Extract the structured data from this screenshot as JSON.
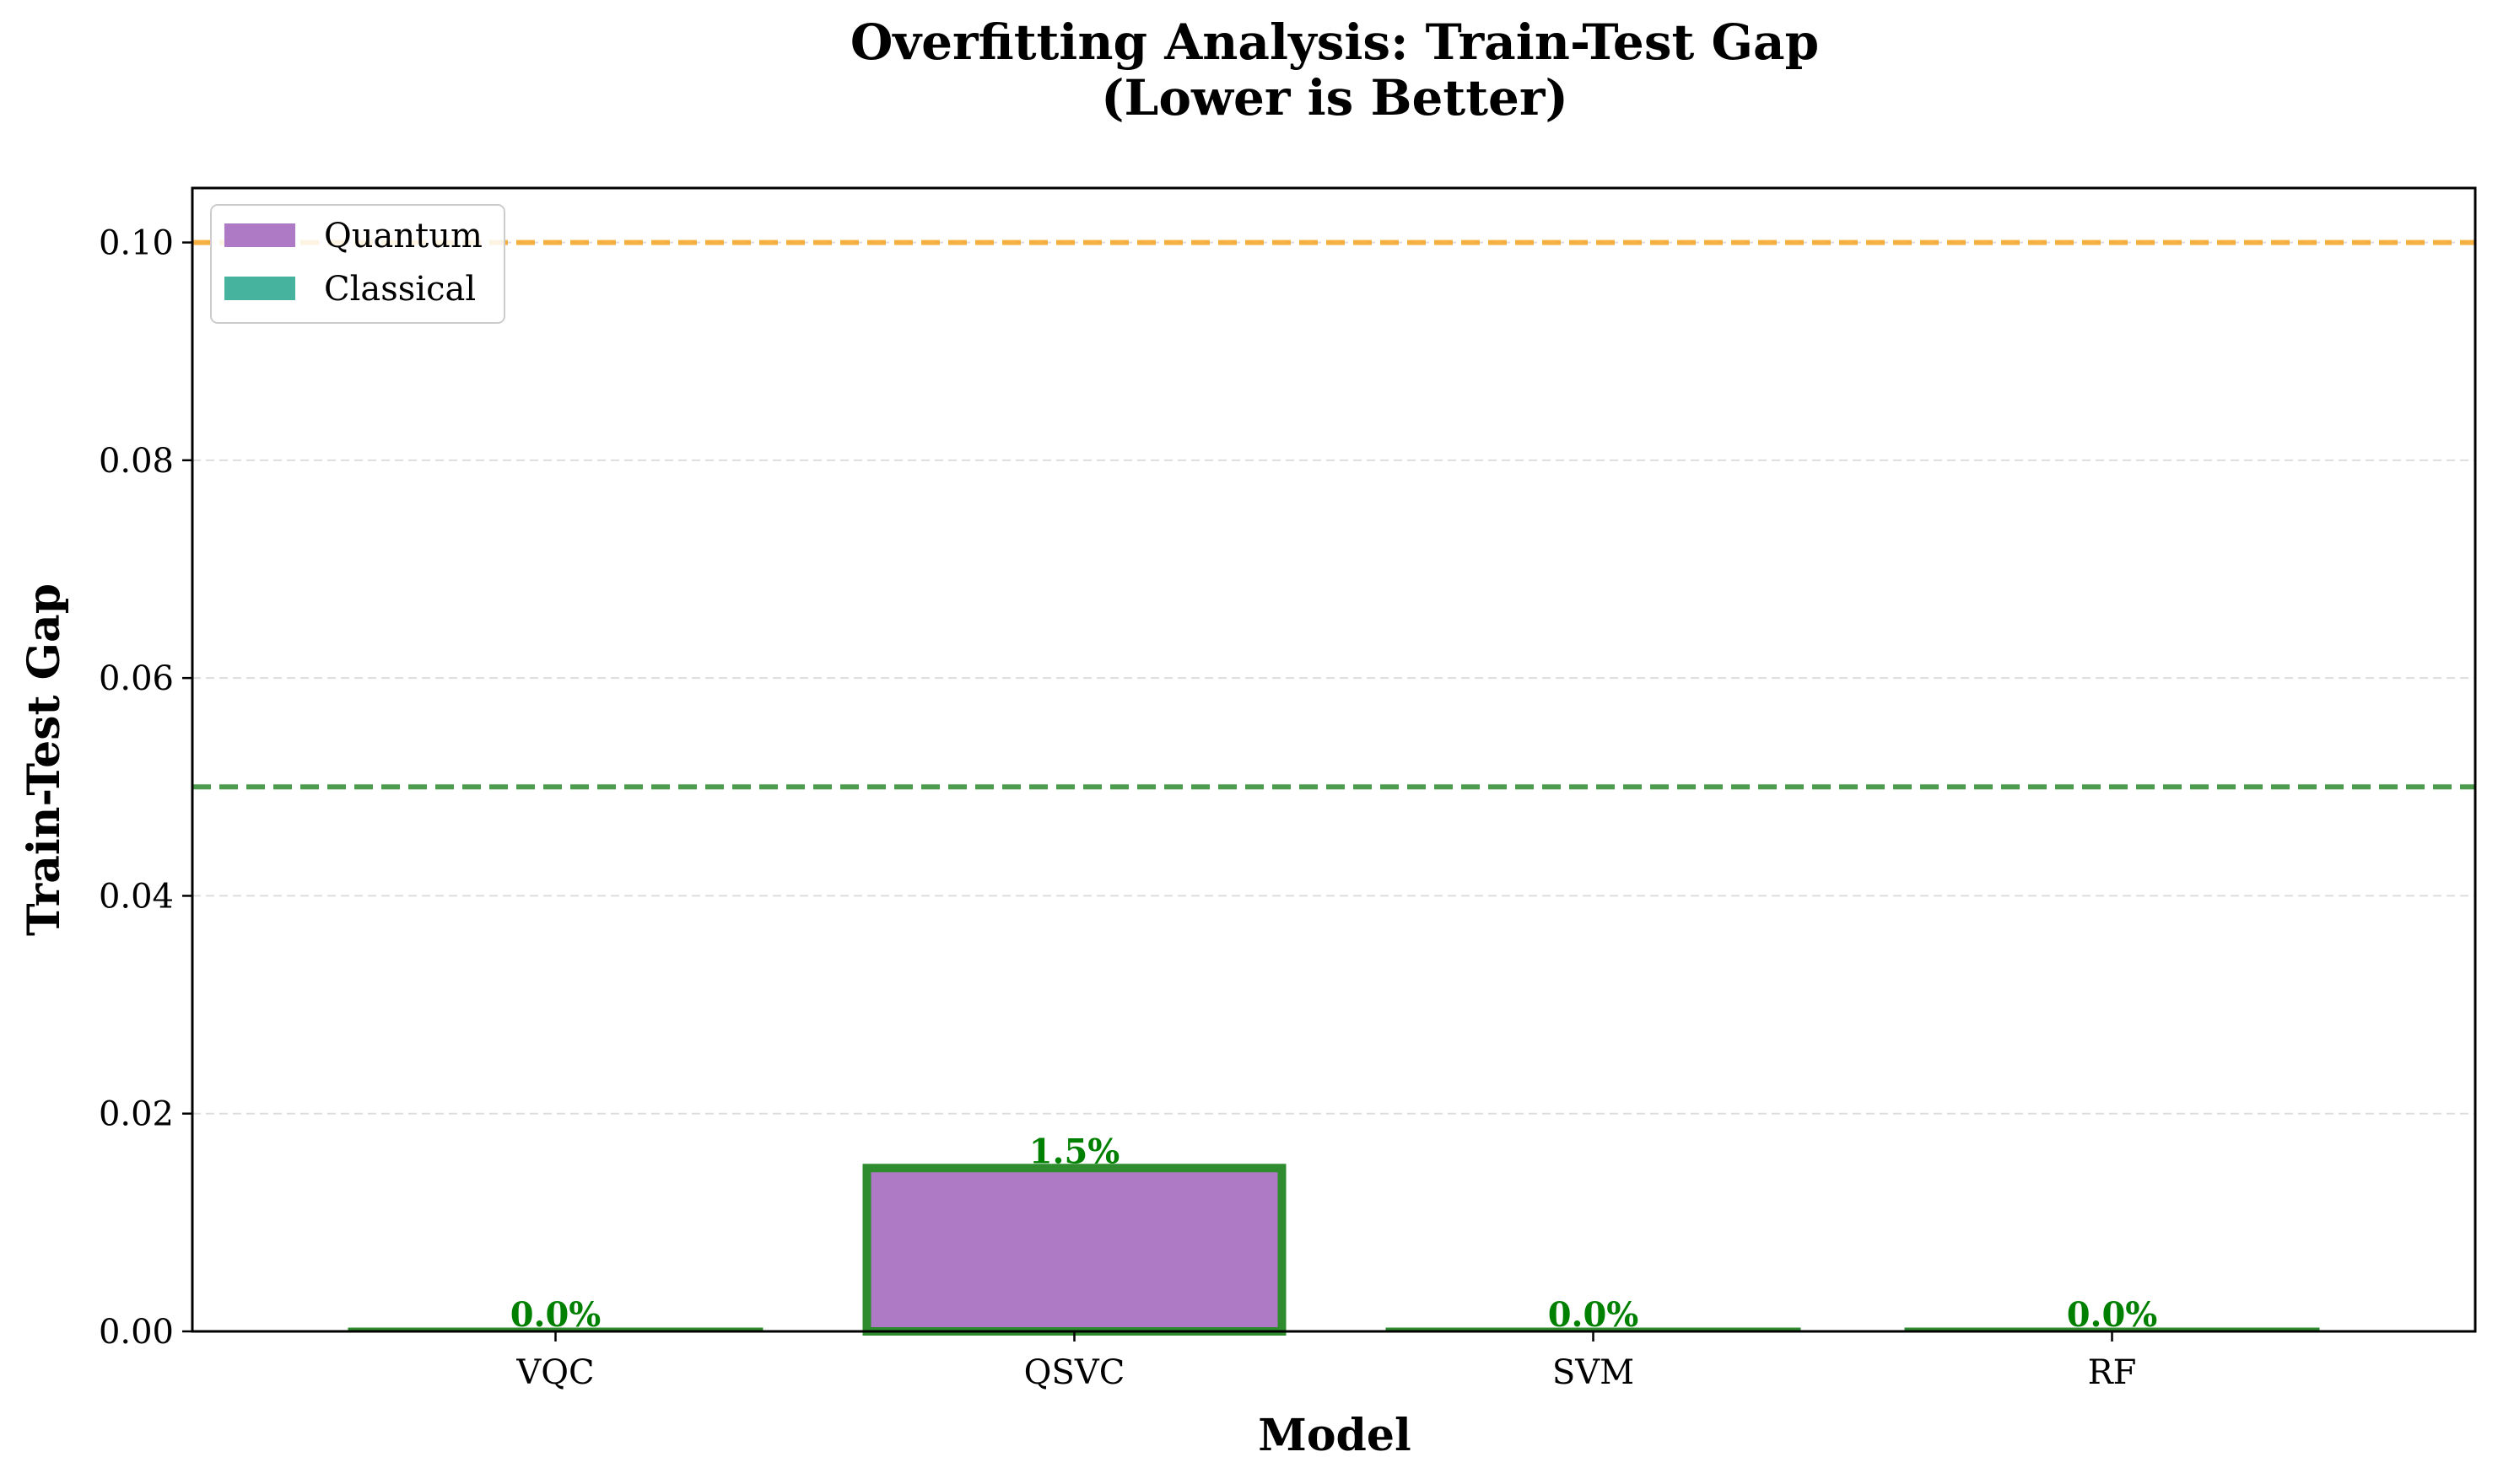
{
  "chart_data": {
    "type": "bar",
    "title": [
      "Overfitting Analysis: Train-Test Gap",
      "(Lower is Better)"
    ],
    "xlabel": "Model",
    "ylabel": "Train-Test Gap",
    "categories": [
      "VQC",
      "QSVC",
      "SVM",
      "RF"
    ],
    "values": [
      0.0,
      0.015,
      0.0,
      0.0
    ],
    "groups": [
      "Quantum",
      "Quantum",
      "Classical",
      "Classical"
    ],
    "data_labels": [
      "0.0%",
      "1.5%",
      "0.0%",
      "0.0%"
    ],
    "ylim": [
      0,
      0.105
    ],
    "yticks": [
      0.0,
      0.02,
      0.04,
      0.06,
      0.08,
      0.1
    ],
    "ytick_labels": [
      "0.00",
      "0.02",
      "0.04",
      "0.06",
      "0.08",
      "0.10"
    ],
    "reference_lines": [
      {
        "y": 0.1,
        "color": "#f5a623",
        "style": "dashed"
      },
      {
        "y": 0.05,
        "color": "#2e8b2e",
        "style": "dashed"
      }
    ],
    "legend": {
      "placement": "top-left",
      "entries": [
        {
          "label": "Quantum",
          "color": "#af7ac5"
        },
        {
          "label": "Classical",
          "color": "#45b39d"
        }
      ]
    },
    "grid": "y-dashed",
    "colors": {
      "quantum": "#af7ac5",
      "classical": "#45b39d",
      "bar_edge": "#2e8b2e",
      "label": "#008000"
    }
  }
}
